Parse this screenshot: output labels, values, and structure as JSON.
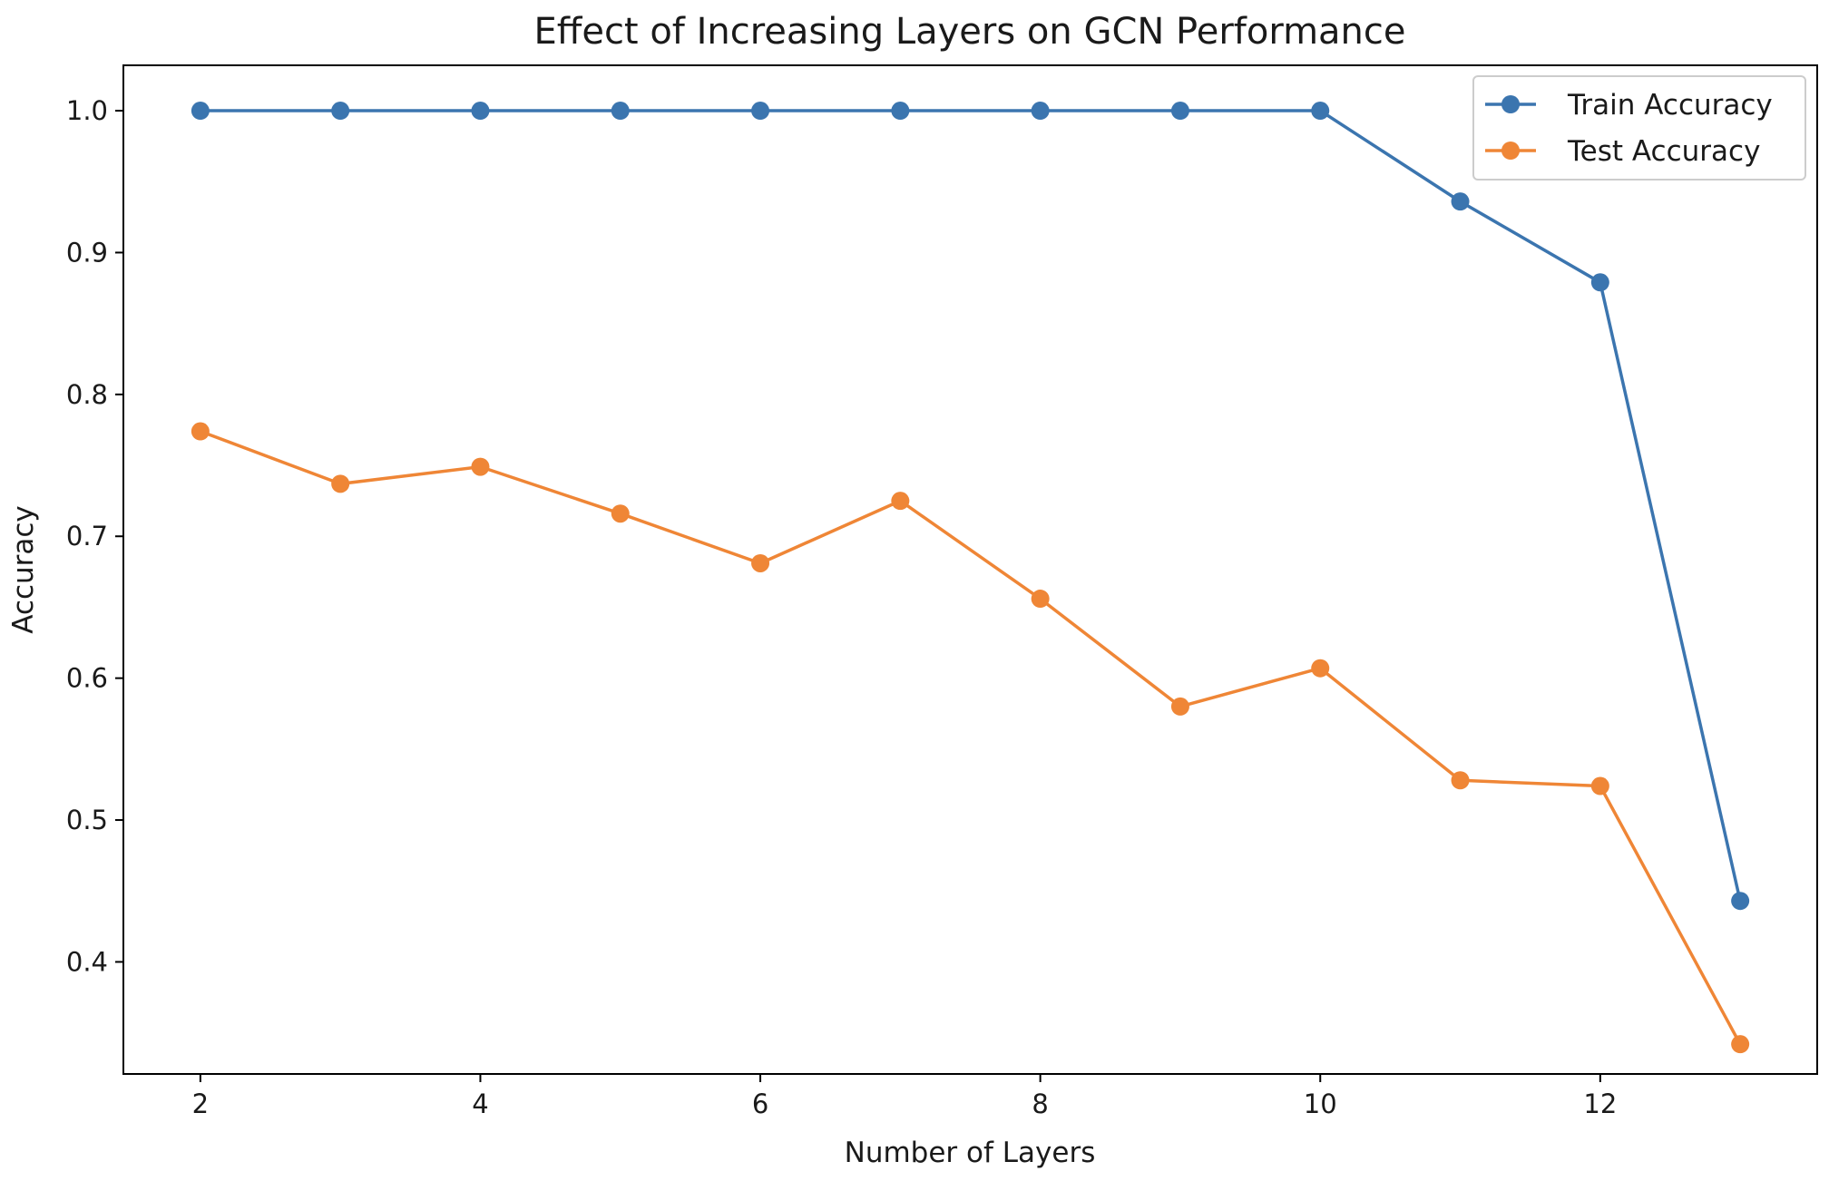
{
  "chart_data": {
    "type": "line",
    "title": "Effect of Increasing Layers on GCN Performance",
    "xlabel": "Number of Layers",
    "ylabel": "Accuracy",
    "x": [
      2,
      3,
      4,
      5,
      6,
      7,
      8,
      9,
      10,
      11,
      12,
      13
    ],
    "xlim": [
      1.45,
      13.55
    ],
    "ylim": [
      0.321,
      1.032
    ],
    "x_ticks": [
      2,
      4,
      6,
      8,
      10,
      12
    ],
    "y_ticks": [
      0.4,
      0.5,
      0.6,
      0.7,
      0.8,
      0.9,
      1.0
    ],
    "y_tick_labels": [
      "0.4",
      "0.5",
      "0.6",
      "0.7",
      "0.8",
      "0.9",
      "1.0"
    ],
    "grid": false,
    "legend_position": "top-right",
    "marker": "circle",
    "series": [
      {
        "name": "Train Accuracy",
        "color": "#3b75af",
        "values": [
          1.0,
          1.0,
          1.0,
          1.0,
          1.0,
          1.0,
          1.0,
          1.0,
          1.0,
          0.936,
          0.879,
          0.443
        ]
      },
      {
        "name": "Test Accuracy",
        "color": "#ef8636",
        "values": [
          0.774,
          0.737,
          0.749,
          0.716,
          0.681,
          0.725,
          0.656,
          0.58,
          0.607,
          0.528,
          0.524,
          0.342
        ]
      }
    ]
  }
}
